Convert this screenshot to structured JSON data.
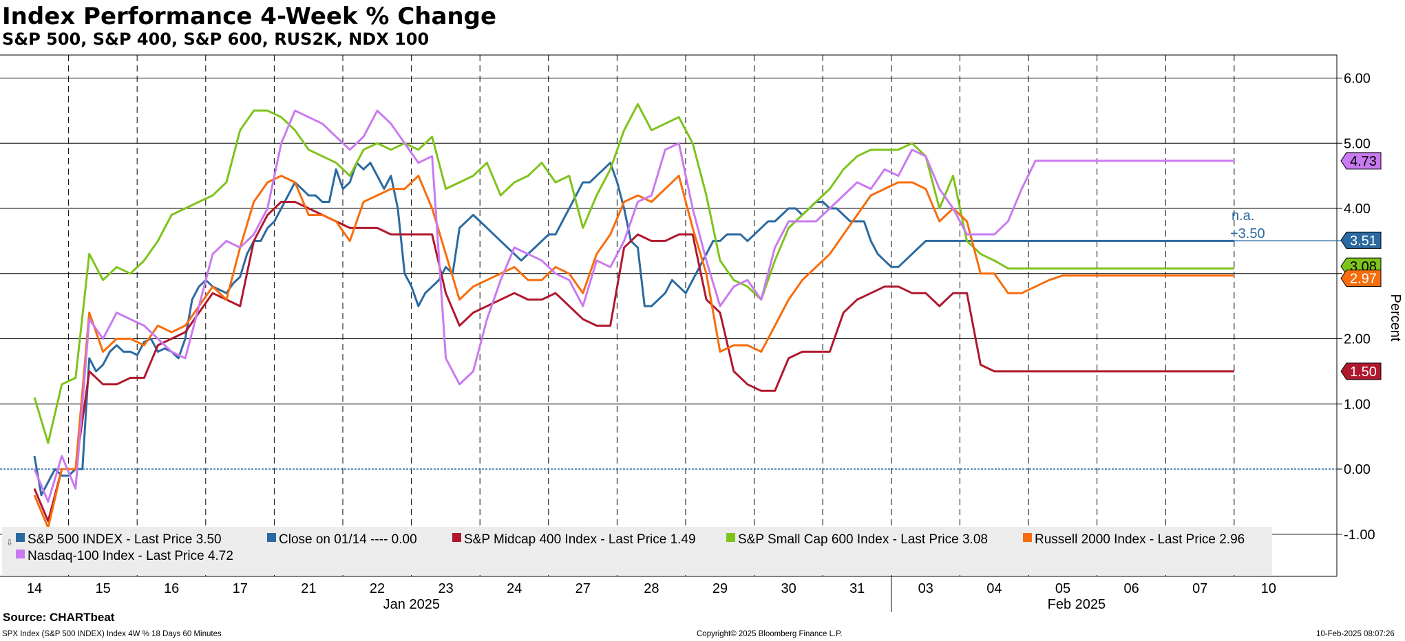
{
  "header": {
    "title": "Index Performance 4-Week % Change",
    "subtitle": "S&P 500, S&P 400, S&P 600, RUS2K, NDX 100"
  },
  "footer": {
    "source": "Source: CHARTbeat",
    "ticker_line": "SPX Index (S&P 500 INDEX) Index 4W % 18 Days 60 Minutes",
    "copyright": "Copyright© 2025 Bloomberg Finance L.P.",
    "timestamp": "10-Feb-2025 08:07:26"
  },
  "annotations": {
    "na": "n.a.",
    "close_delta": "+3.50"
  },
  "chart_data": {
    "type": "line",
    "ylabel": "Percent",
    "ylim": [
      -1.6,
      6.4
    ],
    "yticks": [
      "6.00",
      "5.00",
      "4.00",
      "3.00",
      "2.00",
      "1.00",
      "0.00",
      "-1.00"
    ],
    "grid": true,
    "legend_position": "bottom",
    "x_days": [
      "14",
      "15",
      "16",
      "17",
      "21",
      "22",
      "23",
      "24",
      "27",
      "28",
      "29",
      "30",
      "31",
      "03",
      "04",
      "05",
      "06",
      "07",
      "10"
    ],
    "month_labels": [
      "Jan 2025",
      "Feb 2025"
    ],
    "series": [
      {
        "name": "S&P 500 INDEX - Last Price",
        "legend_value": "3.50",
        "color": "#2b6aa0",
        "end_label": "3.51",
        "x": [
          0,
          0.1,
          0.2,
          0.3,
          0.4,
          0.5,
          0.6,
          0.7,
          0.8,
          0.9,
          1.0,
          1.1,
          1.2,
          1.3,
          1.4,
          1.5,
          1.6,
          1.7,
          1.8,
          1.9,
          2.0,
          2.1,
          2.2,
          2.3,
          2.4,
          2.5,
          2.6,
          2.7,
          2.8,
          2.9,
          3.0,
          3.1,
          3.2,
          3.3,
          3.4,
          3.5,
          3.6,
          3.7,
          3.8,
          3.9,
          4.0,
          4.1,
          4.2,
          4.3,
          4.4,
          4.5,
          4.6,
          4.7,
          4.8,
          4.9,
          5.0,
          5.1,
          5.2,
          5.3,
          5.4,
          5.5,
          5.6,
          5.7,
          5.8,
          5.9,
          6.0,
          6.1,
          6.2,
          6.3,
          6.4,
          6.5,
          6.6,
          6.7,
          6.8,
          6.9,
          7.0,
          7.1,
          7.2,
          7.3,
          7.4,
          7.5,
          7.6,
          7.7,
          7.8,
          7.9,
          8.0,
          8.1,
          8.2,
          8.3,
          8.4,
          8.5,
          8.6,
          8.7,
          8.8,
          8.9,
          9.0,
          9.1,
          9.2,
          9.3,
          9.4,
          9.5,
          9.6,
          9.7,
          9.8,
          9.9,
          10.0,
          10.1,
          10.2,
          10.3,
          10.4,
          10.5,
          10.6,
          10.7,
          10.8,
          10.9,
          11.0,
          11.1,
          11.2,
          11.3,
          11.4,
          11.5,
          11.6,
          11.7,
          11.8,
          11.9,
          12.0,
          12.1,
          12.2,
          12.3,
          12.4,
          12.5,
          12.6,
          12.7,
          12.8,
          12.9,
          13.0,
          13.1,
          13.2,
          13.3,
          13.4,
          13.5,
          13.6,
          13.7,
          13.8,
          13.9,
          14.0,
          14.1,
          14.2,
          14.3,
          14.4,
          14.5,
          14.6,
          14.7,
          14.8,
          14.9,
          15.0,
          15.1,
          15.2,
          15.3,
          15.4,
          15.5,
          15.6,
          15.7,
          15.8,
          15.9,
          16.0,
          16.1,
          16.2,
          16.3,
          16.4,
          16.5,
          16.6,
          16.7,
          16.8,
          16.9,
          17.0,
          17.1,
          17.2,
          17.3,
          17.4,
          17.5
        ],
        "values": [
          0.2,
          -0.4,
          -0.2,
          0.0,
          -0.1,
          -0.1,
          0.0,
          0.0,
          1.7,
          1.5,
          1.6,
          1.8,
          1.9,
          1.8,
          1.8,
          1.75,
          1.95,
          2.0,
          1.8,
          1.85,
          1.8,
          1.7,
          2.0,
          2.6,
          2.8,
          2.9,
          2.8,
          2.75,
          2.7,
          2.85,
          2.95,
          3.3,
          3.5,
          3.5,
          3.7,
          3.8,
          4.0,
          4.2,
          4.4,
          4.3,
          4.2,
          4.2,
          4.1,
          4.1,
          4.6,
          4.3,
          4.4,
          4.7,
          4.6,
          4.7,
          4.5,
          4.3,
          4.5,
          4.0,
          3.0,
          2.8,
          2.5,
          2.7,
          2.8,
          2.9,
          3.1,
          3.0,
          3.7,
          3.8,
          3.9,
          3.8,
          3.7,
          3.6,
          3.5,
          3.4,
          3.3,
          3.2,
          3.3,
          3.4,
          3.5,
          3.6,
          3.6,
          3.8,
          4.0,
          4.2,
          4.4,
          4.4,
          4.5,
          4.6,
          4.7,
          4.4,
          4.0,
          3.5,
          3.4,
          2.5,
          2.5,
          2.6,
          2.7,
          2.9,
          2.8,
          2.7,
          2.9,
          3.1,
          3.3,
          3.5,
          3.5,
          3.6,
          3.6,
          3.6,
          3.5,
          3.6,
          3.7,
          3.8,
          3.8,
          3.9,
          4.0,
          4.0,
          3.9,
          4.0,
          4.1,
          4.1,
          4.0,
          4.0,
          3.9,
          3.8,
          3.8,
          3.8,
          3.5,
          3.3,
          3.2,
          3.1,
          3.1,
          3.2,
          3.3,
          3.4,
          3.5,
          3.5,
          3.5,
          3.5,
          3.5,
          3.5,
          3.5,
          3.5,
          3.5,
          3.5,
          3.5,
          3.5,
          3.5,
          3.5,
          3.5,
          3.5,
          3.5,
          3.5,
          3.5,
          3.5,
          3.5,
          3.5,
          3.5,
          3.5,
          3.5,
          3.5,
          3.5,
          3.5,
          3.5,
          3.5,
          3.5,
          3.5,
          3.5,
          3.5,
          3.5,
          3.5,
          3.5,
          3.5,
          3.5,
          3.5,
          3.5,
          3.5,
          3.5,
          3.5,
          3.5,
          3.5
        ]
      },
      {
        "name": "S&P Midcap 400 Index - Last Price",
        "legend_value": "1.49",
        "color": "#b0182e",
        "end_label": "1.50",
        "x": [
          0,
          0.2,
          0.4,
          0.6,
          0.8,
          1.0,
          1.2,
          1.4,
          1.6,
          1.8,
          2.0,
          2.2,
          2.4,
          2.6,
          2.8,
          3.0,
          3.2,
          3.4,
          3.6,
          3.8,
          4.0,
          4.2,
          4.4,
          4.6,
          4.8,
          5.0,
          5.2,
          5.4,
          5.6,
          5.8,
          6.0,
          6.2,
          6.4,
          6.6,
          6.8,
          7.0,
          7.2,
          7.4,
          7.6,
          7.8,
          8.0,
          8.2,
          8.4,
          8.6,
          8.8,
          9.0,
          9.2,
          9.4,
          9.6,
          9.8,
          10.0,
          10.2,
          10.4,
          10.6,
          10.8,
          11.0,
          11.2,
          11.4,
          11.6,
          11.8,
          12.0,
          12.2,
          12.4,
          12.6,
          12.8,
          13.0,
          13.2,
          13.4,
          13.6,
          13.8,
          14.0,
          14.2,
          14.4,
          14.6,
          14.8,
          15.0,
          15.2,
          15.4,
          15.6,
          15.8,
          16.0,
          16.2,
          16.4,
          16.6,
          16.8,
          17.0,
          17.2,
          17.4,
          17.5
        ],
        "values": [
          -0.3,
          -0.8,
          0.0,
          0.0,
          1.5,
          1.3,
          1.3,
          1.4,
          1.4,
          1.9,
          2.0,
          2.1,
          2.4,
          2.7,
          2.6,
          2.5,
          3.5,
          3.9,
          4.1,
          4.1,
          4.0,
          3.9,
          3.8,
          3.7,
          3.7,
          3.7,
          3.6,
          3.6,
          3.6,
          3.6,
          2.7,
          2.2,
          2.4,
          2.5,
          2.6,
          2.7,
          2.6,
          2.6,
          2.7,
          2.5,
          2.3,
          2.2,
          2.2,
          3.4,
          3.6,
          3.5,
          3.5,
          3.6,
          3.6,
          2.6,
          2.4,
          1.5,
          1.3,
          1.2,
          1.2,
          1.7,
          1.8,
          1.8,
          1.8,
          2.4,
          2.6,
          2.7,
          2.8,
          2.8,
          2.7,
          2.7,
          2.5,
          2.7,
          2.7,
          1.6,
          1.5,
          1.5,
          1.5,
          1.5,
          1.5,
          1.5,
          1.5,
          1.5,
          1.5,
          1.5,
          1.5,
          1.5,
          1.5,
          1.5,
          1.5,
          1.5,
          1.5,
          1.5,
          1.5
        ]
      },
      {
        "name": "S&P Small Cap 600 Index - Last Price",
        "legend_value": "3.08",
        "color": "#7ec31c",
        "end_label": "3.08",
        "x": [
          0,
          0.2,
          0.4,
          0.6,
          0.8,
          1.0,
          1.2,
          1.4,
          1.6,
          1.8,
          2.0,
          2.2,
          2.4,
          2.6,
          2.8,
          3.0,
          3.2,
          3.4,
          3.6,
          3.8,
          4.0,
          4.2,
          4.4,
          4.6,
          4.8,
          5.0,
          5.2,
          5.4,
          5.6,
          5.8,
          6.0,
          6.2,
          6.4,
          6.6,
          6.8,
          7.0,
          7.2,
          7.4,
          7.6,
          7.8,
          8.0,
          8.2,
          8.4,
          8.6,
          8.8,
          9.0,
          9.2,
          9.4,
          9.6,
          9.8,
          10.0,
          10.2,
          10.4,
          10.6,
          10.8,
          11.0,
          11.2,
          11.4,
          11.6,
          11.8,
          12.0,
          12.2,
          12.4,
          12.6,
          12.8,
          13.0,
          13.2,
          13.4,
          13.6,
          13.8,
          14.0,
          14.2,
          14.4,
          14.6,
          14.8,
          15.0,
          15.2,
          15.4,
          15.6,
          15.8,
          16.0,
          16.2,
          16.4,
          16.6,
          16.8,
          17.0,
          17.2,
          17.4,
          17.5
        ],
        "values": [
          1.1,
          0.4,
          1.3,
          1.4,
          3.3,
          2.9,
          3.1,
          3.0,
          3.2,
          3.5,
          3.9,
          4.0,
          4.1,
          4.2,
          4.4,
          5.2,
          5.5,
          5.5,
          5.4,
          5.2,
          4.9,
          4.8,
          4.7,
          4.5,
          4.9,
          5.0,
          4.9,
          5.0,
          4.9,
          5.1,
          4.3,
          4.4,
          4.5,
          4.7,
          4.2,
          4.4,
          4.5,
          4.7,
          4.4,
          4.5,
          3.7,
          4.2,
          4.6,
          5.2,
          5.6,
          5.2,
          5.3,
          5.4,
          5.0,
          4.2,
          3.2,
          2.9,
          2.8,
          2.6,
          3.2,
          3.7,
          3.9,
          4.1,
          4.3,
          4.6,
          4.8,
          4.9,
          4.9,
          4.9,
          5.0,
          4.8,
          4.0,
          4.5,
          3.5,
          3.3,
          3.2,
          3.08,
          3.08,
          3.08,
          3.08,
          3.08,
          3.08,
          3.08,
          3.08,
          3.08,
          3.08,
          3.08,
          3.08,
          3.08,
          3.08,
          3.08,
          3.08,
          3.08,
          3.08
        ]
      },
      {
        "name": "Russell 2000 Index - Last Price",
        "legend_value": "2.96",
        "color": "#f76d0c",
        "end_label": "2.97",
        "x": [
          0,
          0.2,
          0.4,
          0.6,
          0.8,
          1.0,
          1.2,
          1.4,
          1.6,
          1.8,
          2.0,
          2.2,
          2.4,
          2.6,
          2.8,
          3.0,
          3.2,
          3.4,
          3.6,
          3.8,
          4.0,
          4.2,
          4.4,
          4.6,
          4.8,
          5.0,
          5.2,
          5.4,
          5.6,
          5.8,
          6.0,
          6.2,
          6.4,
          6.6,
          6.8,
          7.0,
          7.2,
          7.4,
          7.6,
          7.8,
          8.0,
          8.2,
          8.4,
          8.6,
          8.8,
          9.0,
          9.2,
          9.4,
          9.6,
          9.8,
          10.0,
          10.2,
          10.4,
          10.6,
          10.8,
          11.0,
          11.2,
          11.4,
          11.6,
          11.8,
          12.0,
          12.2,
          12.4,
          12.6,
          12.8,
          13.0,
          13.2,
          13.4,
          13.6,
          13.8,
          14.0,
          14.2,
          14.4,
          14.6,
          14.8,
          15.0,
          15.2,
          15.4,
          15.6,
          15.8,
          16.0,
          16.2,
          16.4,
          16.6,
          16.8,
          17.0,
          17.2,
          17.4,
          17.5
        ],
        "values": [
          -0.4,
          -0.9,
          0.0,
          0.0,
          2.4,
          1.8,
          2.0,
          2.0,
          1.9,
          2.2,
          2.1,
          2.2,
          2.5,
          2.8,
          2.6,
          3.4,
          4.1,
          4.4,
          4.5,
          4.4,
          3.9,
          3.9,
          3.8,
          3.5,
          4.1,
          4.2,
          4.3,
          4.3,
          4.5,
          4.0,
          3.3,
          2.6,
          2.8,
          2.9,
          3.0,
          3.1,
          2.9,
          2.9,
          3.1,
          3.0,
          2.7,
          3.3,
          3.6,
          4.1,
          4.2,
          4.1,
          4.3,
          4.5,
          3.7,
          3.0,
          1.8,
          1.9,
          1.9,
          1.8,
          2.2,
          2.6,
          2.9,
          3.1,
          3.3,
          3.6,
          3.9,
          4.2,
          4.3,
          4.4,
          4.4,
          4.3,
          3.8,
          4.0,
          3.8,
          3.0,
          3.0,
          2.7,
          2.7,
          2.8,
          2.9,
          2.97,
          2.97,
          2.97,
          2.97,
          2.97,
          2.97,
          2.97,
          2.97,
          2.97,
          2.97,
          2.97,
          2.97,
          2.97,
          2.97
        ]
      },
      {
        "name": "Nasdaq-100 Index - Last Price",
        "legend_value": "4.72",
        "color": "#c97af0",
        "end_label": "4.73",
        "x": [
          0,
          0.2,
          0.4,
          0.6,
          0.8,
          1.0,
          1.2,
          1.4,
          1.6,
          1.8,
          2.0,
          2.2,
          2.4,
          2.6,
          2.8,
          3.0,
          3.2,
          3.4,
          3.6,
          3.8,
          4.0,
          4.2,
          4.4,
          4.6,
          4.8,
          5.0,
          5.2,
          5.4,
          5.6,
          5.8,
          6.0,
          6.2,
          6.4,
          6.6,
          6.8,
          7.0,
          7.2,
          7.4,
          7.6,
          7.8,
          8.0,
          8.2,
          8.4,
          8.6,
          8.8,
          9.0,
          9.2,
          9.4,
          9.6,
          9.8,
          10.0,
          10.2,
          10.4,
          10.6,
          10.8,
          11.0,
          11.2,
          11.4,
          11.6,
          11.8,
          12.0,
          12.2,
          12.4,
          12.6,
          12.8,
          13.0,
          13.2,
          13.4,
          13.6,
          13.8,
          14.0,
          14.2,
          14.4,
          14.6,
          14.8,
          15.0,
          15.2,
          15.4,
          15.6,
          15.8,
          16.0,
          16.2,
          16.4,
          16.6,
          16.8,
          17.0,
          17.2,
          17.4,
          17.5
        ],
        "values": [
          0.0,
          -0.5,
          0.2,
          -0.3,
          2.3,
          2.0,
          2.4,
          2.3,
          2.2,
          2.0,
          1.8,
          1.7,
          2.5,
          3.3,
          3.5,
          3.4,
          3.6,
          4.0,
          5.0,
          5.5,
          5.4,
          5.3,
          5.1,
          4.9,
          5.1,
          5.5,
          5.3,
          5.0,
          4.7,
          4.8,
          1.7,
          1.3,
          1.5,
          2.3,
          2.9,
          3.4,
          3.3,
          3.2,
          3.0,
          2.9,
          2.5,
          3.2,
          3.1,
          3.5,
          4.1,
          4.2,
          4.9,
          5.0,
          4.0,
          3.2,
          2.5,
          2.8,
          2.9,
          2.6,
          3.4,
          3.8,
          3.8,
          3.8,
          4.0,
          4.2,
          4.4,
          4.3,
          4.6,
          4.5,
          4.9,
          4.8,
          4.3,
          4.0,
          3.6,
          3.6,
          3.6,
          3.8,
          4.3,
          4.73,
          4.73,
          4.73,
          4.73,
          4.73,
          4.73,
          4.73,
          4.73,
          4.73,
          4.73,
          4.73,
          4.73,
          4.73,
          4.73,
          4.73,
          4.73
        ]
      }
    ],
    "close_series": {
      "name": "Close on 01/14",
      "legend_value": "0.00",
      "value": 0.0,
      "color": "#2b6aa0"
    }
  }
}
